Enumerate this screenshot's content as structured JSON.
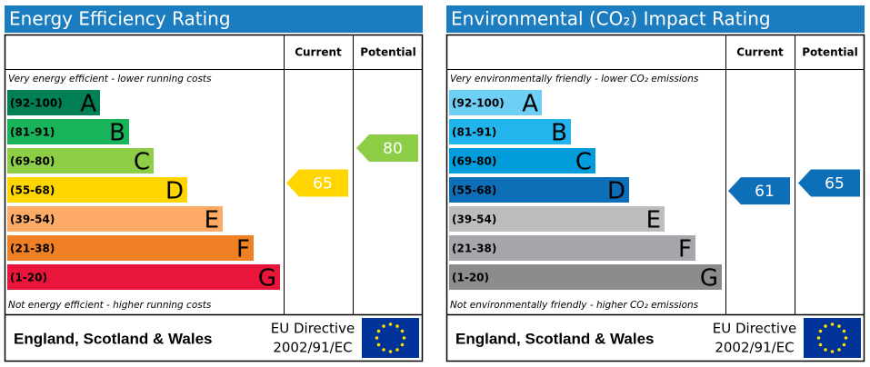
{
  "panels": [
    {
      "title": "Energy Efficiency Rating",
      "columns": [
        "Current",
        "Potential"
      ],
      "top_note": "Very energy efficient - lower running costs",
      "bands": [
        {
          "range": "(92-100)",
          "letter": "A",
          "color": "#008054"
        },
        {
          "range": "(81-91)",
          "letter": "B",
          "color": "#19b459"
        },
        {
          "range": "(69-80)",
          "letter": "C",
          "color": "#8dce46"
        },
        {
          "range": "(55-68)",
          "letter": "D",
          "color": "#ffd500"
        },
        {
          "range": "(39-54)",
          "letter": "E",
          "color": "#fcaa65"
        },
        {
          "range": "(21-38)",
          "letter": "F",
          "color": "#ef8023"
        },
        {
          "range": "(1-20)",
          "letter": "G",
          "color": "#e9153b"
        }
      ],
      "bottom_note": "Not energy efficient - higher running costs",
      "current": 65,
      "potential": 80,
      "footer": {
        "region": "England, Scotland & Wales",
        "directive": "EU Directive",
        "code": "2002/91/EC"
      }
    },
    {
      "title": "Environmental (CO₂) Impact Rating",
      "columns": [
        "Current",
        "Potential"
      ],
      "top_note": "Very environmentally friendly - lower CO₂ emissions",
      "bands": [
        {
          "range": "(92-100)",
          "letter": "A",
          "color": "#6dcff6"
        },
        {
          "range": "(81-91)",
          "letter": "B",
          "color": "#22b4ec"
        },
        {
          "range": "(69-80)",
          "letter": "C",
          "color": "#019cdc"
        },
        {
          "range": "(55-68)",
          "letter": "D",
          "color": "#0e6fb9"
        },
        {
          "range": "(39-54)",
          "letter": "E",
          "color": "#bbbdbf"
        },
        {
          "range": "(21-38)",
          "letter": "F",
          "color": "#a5a7aa"
        },
        {
          "range": "(1-20)",
          "letter": "G",
          "color": "#8a8c8e"
        }
      ],
      "bottom_note": "Not environmentally friendly - higher CO₂ emissions",
      "current": 61,
      "potential": 65,
      "footer": {
        "region": "England, Scotland & Wales",
        "directive": "EU Directive",
        "code": "2002/91/EC"
      }
    }
  ]
}
